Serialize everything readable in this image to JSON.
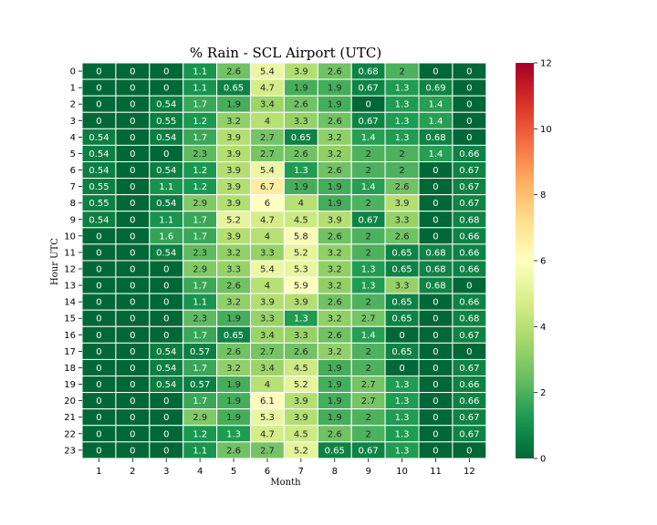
{
  "chart_data": {
    "type": "heatmap",
    "title": "% Rain - SCL Airport (UTC)",
    "xlabel": "Month",
    "ylabel": "Hour UTC",
    "x_categories": [
      "1",
      "2",
      "3",
      "4",
      "5",
      "6",
      "7",
      "8",
      "9",
      "10",
      "11",
      "12"
    ],
    "y_categories": [
      "0",
      "1",
      "2",
      "3",
      "4",
      "5",
      "6",
      "7",
      "8",
      "9",
      "10",
      "11",
      "12",
      "13",
      "14",
      "15",
      "16",
      "17",
      "18",
      "19",
      "20",
      "21",
      "22",
      "23"
    ],
    "values": [
      [
        0,
        0,
        0,
        1.1,
        2.6,
        5.4,
        3.9,
        2.6,
        0.68,
        2,
        0,
        0
      ],
      [
        0,
        0,
        0,
        1.1,
        0.65,
        4.7,
        1.9,
        1.9,
        0.67,
        1.3,
        0.69,
        0
      ],
      [
        0,
        0,
        0.54,
        1.7,
        1.9,
        3.4,
        2.6,
        1.9,
        0,
        1.3,
        1.4,
        0
      ],
      [
        0,
        0,
        0.55,
        1.2,
        3.2,
        4,
        3.3,
        2.6,
        0.67,
        1.3,
        1.4,
        0
      ],
      [
        0.54,
        0,
        0.54,
        1.7,
        3.9,
        2.7,
        0.65,
        3.2,
        1.4,
        1.3,
        0.68,
        0
      ],
      [
        0.54,
        0,
        0,
        2.3,
        3.9,
        2.7,
        2.6,
        3.2,
        2,
        2,
        1.4,
        0.66
      ],
      [
        0.54,
        0,
        0.54,
        1.2,
        3.9,
        5.4,
        1.3,
        2.6,
        2,
        2,
        0,
        0.67
      ],
      [
        0.55,
        0,
        1.1,
        1.2,
        3.9,
        6.7,
        1.9,
        1.9,
        1.4,
        2.6,
        0,
        0.67
      ],
      [
        0.55,
        0,
        0.54,
        2.9,
        3.9,
        6,
        4,
        1.9,
        2,
        3.9,
        0,
        0.67
      ],
      [
        0.54,
        0,
        1.1,
        1.7,
        5.2,
        4.7,
        4.5,
        3.9,
        0.67,
        3.3,
        0,
        0.68
      ],
      [
        0,
        0,
        1.6,
        1.7,
        3.9,
        4,
        5.8,
        2.6,
        2,
        2.6,
        0,
        0.66
      ],
      [
        0,
        0,
        0.54,
        2.3,
        3.2,
        3.3,
        5.2,
        3.2,
        2,
        0.65,
        0.68,
        0.66
      ],
      [
        0,
        0,
        0,
        2.9,
        3.3,
        5.4,
        5.3,
        3.2,
        1.3,
        0.65,
        0.68,
        0.66
      ],
      [
        0,
        0,
        0,
        1.7,
        2.6,
        4,
        5.9,
        3.2,
        1.3,
        3.3,
        0.68,
        0
      ],
      [
        0,
        0,
        0,
        1.1,
        3.2,
        3.9,
        3.9,
        2.6,
        2,
        0.65,
        0,
        0.66
      ],
      [
        0,
        0,
        0,
        2.3,
        1.9,
        3.3,
        1.3,
        3.2,
        2.7,
        0.65,
        0,
        0.68
      ],
      [
        0,
        0,
        0,
        1.7,
        0.65,
        3.4,
        3.3,
        2.6,
        1.4,
        0,
        0,
        0.67
      ],
      [
        0,
        0,
        0.54,
        0.57,
        2.6,
        2.7,
        2.6,
        3.2,
        2,
        0.65,
        0,
        0
      ],
      [
        0,
        0,
        0.54,
        1.7,
        3.2,
        3.4,
        4.5,
        1.9,
        2,
        0,
        0,
        0.67
      ],
      [
        0,
        0,
        0.54,
        0.57,
        1.9,
        4,
        5.2,
        1.9,
        2.7,
        1.3,
        0,
        0.66
      ],
      [
        0,
        0,
        0,
        1.7,
        1.9,
        6.1,
        3.9,
        1.9,
        2.7,
        1.3,
        0,
        0.66
      ],
      [
        0,
        0,
        0,
        2.9,
        1.9,
        5.3,
        3.9,
        1.9,
        2,
        1.3,
        0,
        0.67
      ],
      [
        0,
        0,
        0,
        1.2,
        1.3,
        4.7,
        4.5,
        2.6,
        2,
        1.3,
        0,
        0.67
      ],
      [
        0,
        0,
        0,
        1.1,
        2.6,
        2.7,
        5.2,
        0.65,
        0.67,
        1.3,
        0,
        0
      ]
    ],
    "colorbar": {
      "min": 0,
      "max": 12,
      "ticks": [
        0,
        2,
        4,
        6,
        8,
        10,
        12
      ],
      "colormap": "RdYlGn_r"
    },
    "grid_lines": "white"
  }
}
